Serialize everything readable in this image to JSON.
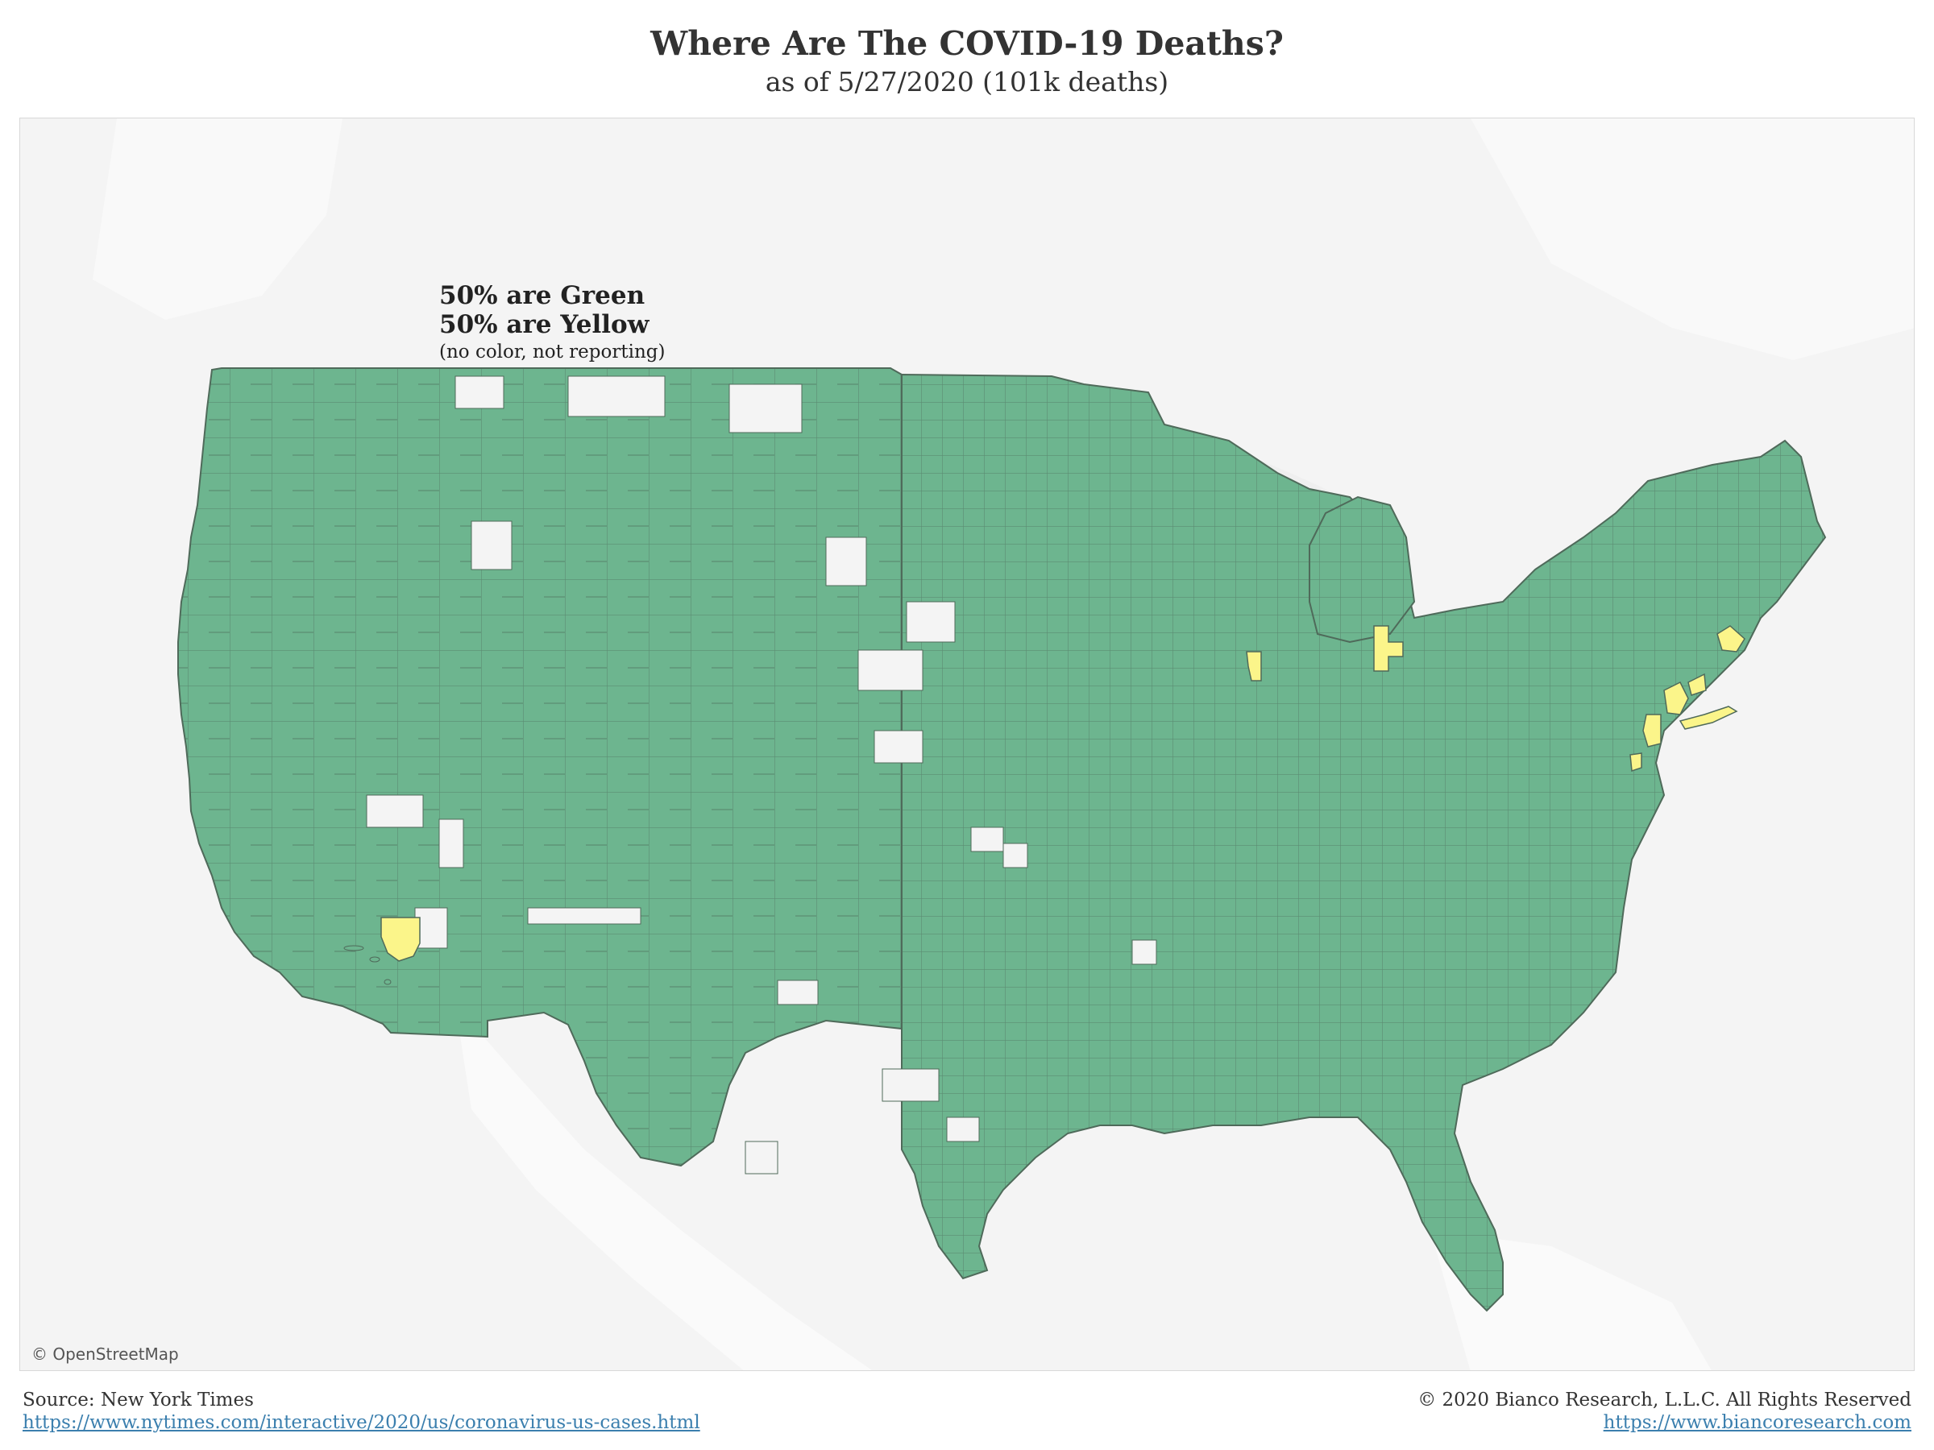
{
  "header": {
    "title": "Where Are The COVID-19 Deaths?",
    "subtitle": "as of 5/27/2020 (101k deaths)"
  },
  "annotation": {
    "line1": "50% are Green",
    "line2": "50% are Yellow",
    "line3": "(no color, not reporting)"
  },
  "map": {
    "attribution": "© OpenStreetMap",
    "colors": {
      "green": "#6db58f",
      "yellow": "#fbf58a",
      "no_data": "#f4f4f4",
      "border": "#4f6a5a",
      "base": "#f4f4f4"
    },
    "yellow_regions": [
      "Los Angeles area",
      "Chicago area",
      "Detroit area",
      "New York City area",
      "Long Island",
      "Northern New Jersey",
      "Boston area",
      "Philadelphia area"
    ]
  },
  "footer": {
    "source_label": "Source: New York Times",
    "source_url": "https://www.nytimes.com/interactive/2020/us/coronavirus-us-cases.html",
    "copyright": "© 2020 Bianco Research, L.L.C. All Rights Reserved",
    "site_url": "https://www.biancoresearch.com"
  }
}
